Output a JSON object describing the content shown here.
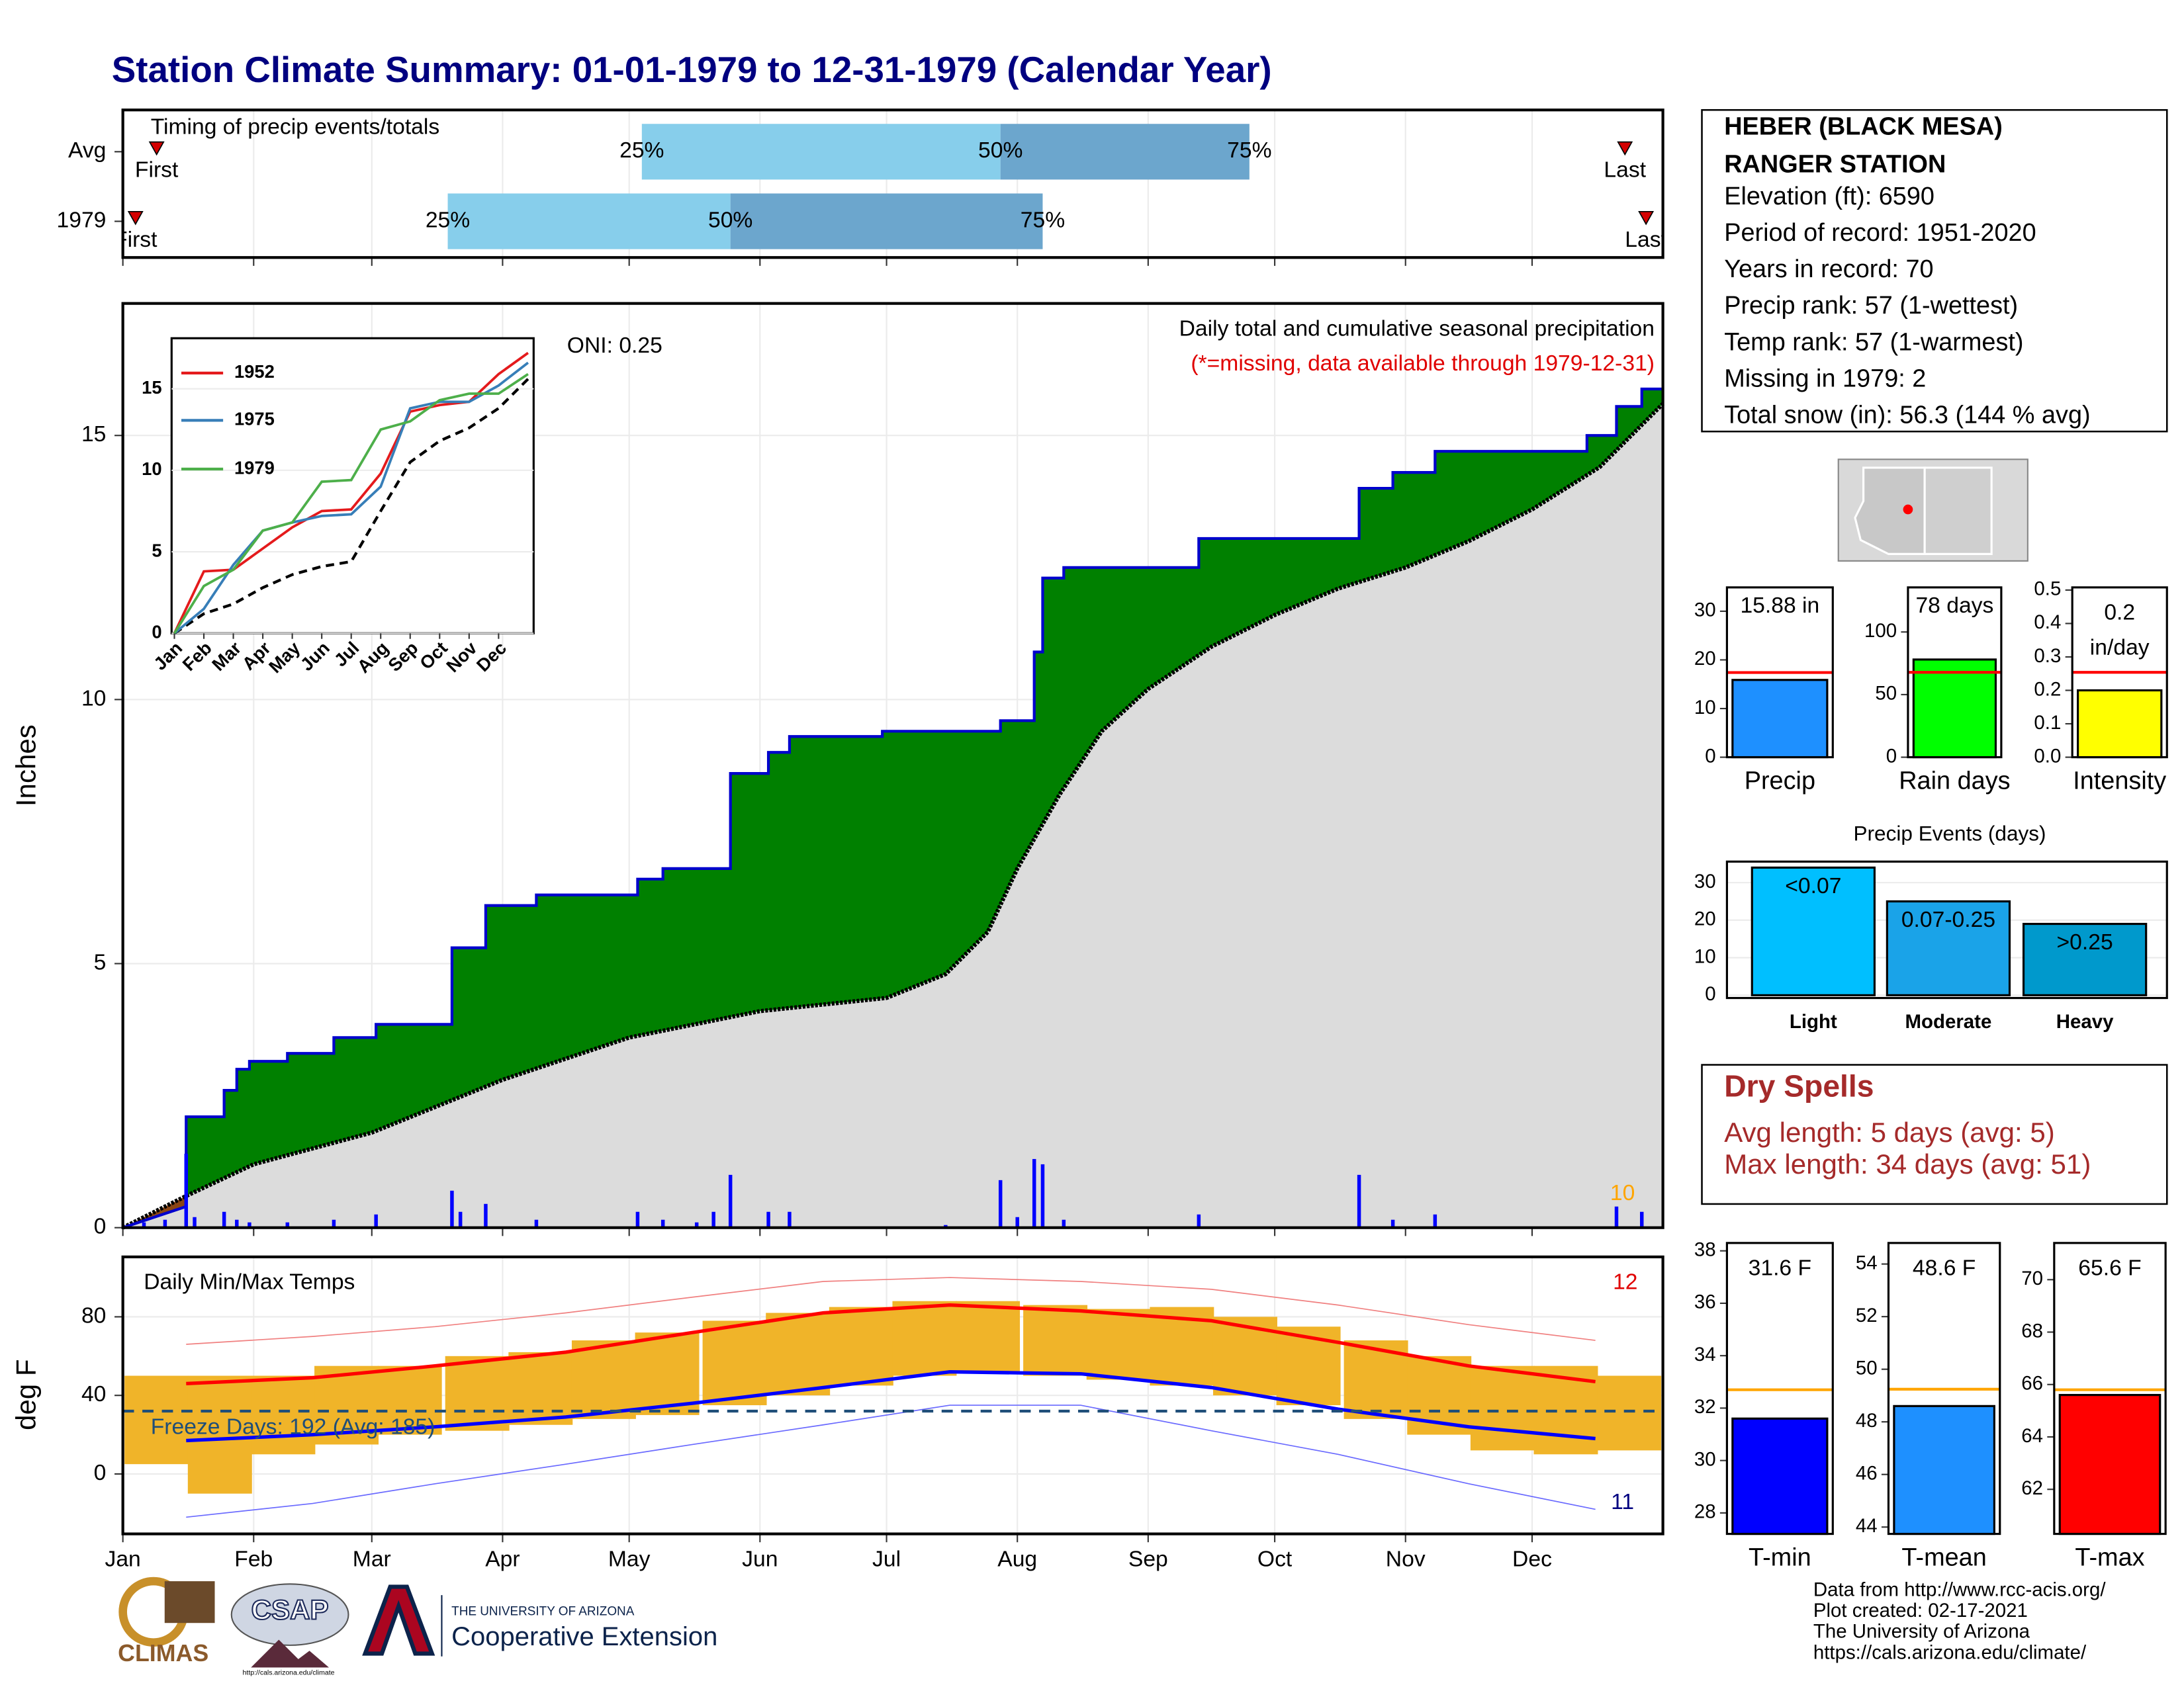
{
  "title": "Station Climate Summary: 01-01-1979 to 12-31-1979 (Calendar Year)",
  "chart_data": [
    {
      "type": "timing",
      "title": "Timing of precip events/totals",
      "xlim": [
        0,
        365
      ],
      "colors": [
        "#87ceeb",
        "#6ca6cd"
      ],
      "marker_color": "#d40000",
      "series": [
        {
          "name": "Avg",
          "values": [
            123,
            208,
            267
          ],
          "value_labels": [
            "25%",
            "50%",
            "75%"
          ],
          "first": 8,
          "last": 356,
          "first_label": "First",
          "last_label": "Last"
        },
        {
          "name": "1979",
          "values": [
            77,
            144,
            218
          ],
          "value_labels": [
            "25%",
            "50%",
            "75%"
          ],
          "first": 3,
          "last": 361,
          "first_label": "First",
          "last_label": "Last"
        }
      ]
    },
    {
      "type": "cumulative",
      "ylabel": "Inches",
      "ylim": [
        0,
        17.5
      ],
      "yticks": [
        0,
        5,
        10,
        15
      ],
      "xlim": [
        0,
        365
      ],
      "oni": "ONI: 0.25",
      "subtitle": "Daily total and cumulative seasonal precipitation",
      "note": "(*=missing, data available through 1979-12-31)",
      "count": "10",
      "colors": {
        "above": "#008000",
        "below": "#8b4513",
        "normal": "#dcdcdc"
      },
      "observed": {
        "color": "#0000cd",
        "x": [
          0,
          15,
          15,
          24,
          24,
          27,
          27,
          30,
          30,
          39,
          39,
          50,
          50,
          60,
          60,
          78,
          78,
          86,
          86,
          98,
          98,
          122,
          122,
          128,
          128,
          144,
          144,
          153,
          153,
          158,
          158,
          180,
          180,
          208,
          208,
          216,
          216,
          218,
          218,
          223,
          223,
          255,
          255,
          293,
          293,
          301,
          301,
          311,
          311,
          347,
          347,
          354,
          354,
          360,
          360,
          365
        ],
        "values": [
          0,
          0.4,
          2.1,
          2.1,
          2.6,
          2.6,
          3.0,
          3.0,
          3.15,
          3.15,
          3.3,
          3.3,
          3.6,
          3.6,
          3.85,
          3.85,
          5.3,
          5.3,
          6.1,
          6.1,
          6.3,
          6.3,
          6.6,
          6.6,
          6.8,
          6.8,
          8.6,
          8.6,
          9.0,
          9.0,
          9.3,
          9.3,
          9.4,
          9.4,
          9.6,
          9.6,
          10.9,
          10.9,
          12.3,
          12.3,
          12.5,
          12.5,
          13.05,
          13.05,
          14.0,
          14.0,
          14.3,
          14.3,
          14.7,
          14.7,
          15.0,
          15.0,
          15.55,
          15.55,
          15.88,
          15.88
        ]
      },
      "average": {
        "color": "#000000",
        "x": [
          0,
          15,
          31,
          59,
          90,
          120,
          151,
          181,
          195,
          205,
          212,
          222,
          232,
          243,
          258,
          273,
          288,
          304,
          319,
          334,
          350,
          365
        ],
        "values": [
          0,
          0.6,
          1.2,
          1.8,
          2.8,
          3.6,
          4.1,
          4.35,
          4.8,
          5.6,
          6.8,
          8.2,
          9.4,
          10.2,
          11.0,
          11.6,
          12.1,
          12.5,
          13.0,
          13.6,
          14.4,
          15.6
        ]
      },
      "daily": {
        "color": "#0000ff",
        "x": [
          5,
          10,
          15,
          17,
          24,
          27,
          30,
          39,
          50,
          60,
          78,
          80,
          86,
          98,
          122,
          128,
          136,
          140,
          144,
          153,
          158,
          195,
          208,
          212,
          216,
          218,
          223,
          255,
          293,
          301,
          311,
          354,
          360
        ],
        "values": [
          0.1,
          0.15,
          1.4,
          0.2,
          0.3,
          0.15,
          0.1,
          0.1,
          0.15,
          0.25,
          0.7,
          0.3,
          0.45,
          0.15,
          0.3,
          0.15,
          0.1,
          0.3,
          1.0,
          0.3,
          0.3,
          0.05,
          0.9,
          0.2,
          1.3,
          1.2,
          0.15,
          0.25,
          1.0,
          0.15,
          0.25,
          0.4,
          0.3
        ]
      }
    },
    {
      "type": "line",
      "xlim": [
        0,
        12
      ],
      "ylim": [
        0,
        18.1
      ],
      "yticks": [
        0,
        5,
        10,
        15
      ],
      "x": [
        0,
        1,
        2,
        3,
        4,
        5,
        6,
        7,
        8,
        9,
        10,
        11,
        12
      ],
      "xticks": [
        {
          "value": 0,
          "label": "Jan"
        },
        {
          "value": 1,
          "label": "Feb"
        },
        {
          "value": 2,
          "label": "Mar"
        },
        {
          "value": 3,
          "label": "Apr"
        },
        {
          "value": 4,
          "label": "May"
        },
        {
          "value": 5,
          "label": "Jun"
        },
        {
          "value": 6,
          "label": "Jul"
        },
        {
          "value": 7,
          "label": "Aug"
        },
        {
          "value": 8,
          "label": "Sep"
        },
        {
          "value": 9,
          "label": "Oct"
        },
        {
          "value": 10,
          "label": "Nov"
        },
        {
          "value": 11,
          "label": "Dec"
        }
      ],
      "series": [
        {
          "name": "1952",
          "color": "#e41a1c",
          "values": [
            0,
            3.8,
            3.9,
            5.2,
            6.5,
            7.5,
            7.6,
            9.8,
            13.6,
            14.0,
            14.2,
            15.9,
            17.2
          ]
        },
        {
          "name": "1975",
          "color": "#377eb8",
          "values": [
            0,
            1.5,
            4.2,
            6.3,
            6.8,
            7.2,
            7.3,
            9.0,
            13.8,
            14.2,
            14.2,
            15.2,
            16.6
          ]
        },
        {
          "name": "1979",
          "color": "#4daf4a",
          "values": [
            0,
            2.9,
            3.9,
            6.3,
            6.8,
            9.3,
            9.4,
            12.5,
            13.0,
            14.3,
            14.7,
            14.7,
            15.9
          ]
        }
      ],
      "average": {
        "color": "#000000",
        "values": [
          0,
          1.2,
          1.8,
          2.8,
          3.6,
          4.1,
          4.4,
          7.5,
          10.5,
          11.8,
          12.6,
          13.8,
          15.6
        ]
      }
    },
    {
      "type": "temps",
      "title": "Daily Min/Max Temps",
      "ylabel": "deg F",
      "ylim": [
        -30.5,
        110.5
      ],
      "yticks": [
        0,
        40,
        80
      ],
      "xlim": [
        0,
        365
      ],
      "xticks": [
        {
          "value": 0,
          "label": "Jan"
        },
        {
          "value": 31,
          "label": "Feb"
        },
        {
          "value": 59,
          "label": "Mar"
        },
        {
          "value": 90,
          "label": "Apr"
        },
        {
          "value": 120,
          "label": "May"
        },
        {
          "value": 151,
          "label": "Jun"
        },
        {
          "value": 181,
          "label": "Jul"
        },
        {
          "value": 212,
          "label": "Aug"
        },
        {
          "value": 243,
          "label": "Sep"
        },
        {
          "value": 273,
          "label": "Oct"
        },
        {
          "value": 304,
          "label": "Nov"
        },
        {
          "value": 334,
          "label": "Dec"
        }
      ],
      "bars": {
        "color": "#f0b429",
        "x": [
          8,
          23,
          38,
          53,
          68,
          84,
          99,
          114,
          129,
          145,
          160,
          175,
          190,
          205,
          221,
          236,
          251,
          266,
          281,
          297,
          312,
          327,
          342,
          357
        ],
        "min": [
          5,
          -10,
          10,
          15,
          20,
          22,
          25,
          28,
          30,
          35,
          40,
          45,
          50,
          52,
          50,
          48,
          45,
          40,
          35,
          28,
          20,
          12,
          10,
          12
        ],
        "max": [
          50,
          50,
          50,
          55,
          55,
          60,
          62,
          68,
          72,
          78,
          82,
          85,
          88,
          88,
          86,
          84,
          85,
          80,
          75,
          68,
          60,
          55,
          55,
          50
        ]
      },
      "monthly_x": [
        15,
        45,
        74,
        105,
        135,
        166,
        196,
        227,
        258,
        288,
        319,
        349
      ],
      "normal_max": {
        "color": "#ff0000",
        "values": [
          46,
          49,
          55,
          62,
          72,
          82,
          86,
          83,
          78,
          67,
          55,
          47
        ]
      },
      "normal_min": {
        "color": "#0000ff",
        "values": [
          17,
          20,
          24,
          29,
          36,
          44,
          52,
          51,
          44,
          33,
          24,
          18
        ]
      },
      "record_max": {
        "color": "#f08080",
        "values": [
          66,
          70,
          75,
          82,
          90,
          98,
          100,
          98,
          94,
          86,
          76,
          68
        ]
      },
      "record_min": {
        "color": "#6a6aff",
        "values": [
          -22,
          -15,
          -5,
          5,
          15,
          25,
          35,
          35,
          22,
          10,
          -5,
          -18
        ]
      },
      "freeze_line": 32,
      "freeze_color": "#1f4e79",
      "freeze_label": "Freeze Days: 192 (Avg: 185)",
      "max_count": "12",
      "min_count": "11"
    },
    {
      "type": "summary",
      "avg_color": "#ff0000",
      "panels": [
        {
          "label": "Precip",
          "value": 15.88,
          "value_label": "15.88 in",
          "avg": 17.4,
          "ylim": [
            0,
            34.9
          ],
          "yticks": [
            0,
            10,
            20,
            30
          ],
          "color": "#1e90ff"
        },
        {
          "label": "Rain days",
          "value": 78,
          "value_label": "78 days",
          "avg": 67.8,
          "ylim": [
            0,
            135.6
          ],
          "yticks": [
            0,
            50,
            100
          ],
          "color": "#00ff00"
        },
        {
          "label": "Intensity",
          "value": 0.2,
          "value_label": "0.2",
          "unit": "in/day",
          "avg": 0.254,
          "ylim": [
            0,
            0.508
          ],
          "yticks": [
            {
              "value": 0,
              "label": "0.0"
            },
            0.1,
            0.2,
            0.3,
            0.4,
            0.5
          ],
          "color": "#ffff00"
        }
      ]
    },
    {
      "type": "bar",
      "title": "Precip Events (days)",
      "categories": [
        "Light",
        "Moderate",
        "Heavy"
      ],
      "values": [
        34,
        25,
        19
      ],
      "thresholds": [
        "<0.07",
        "0.07-0.25",
        ">0.25"
      ],
      "colors": [
        "#00bfff",
        "#1aa3e8",
        "#0099cc"
      ],
      "ylim": [
        0,
        35.6
      ],
      "yticks": [
        0,
        10,
        20,
        30
      ]
    },
    {
      "type": "summary",
      "avg_color": "#ffa500",
      "panels": [
        {
          "label": "T-min",
          "value": 31.6,
          "value_label": "31.6 F",
          "avg": 32.7,
          "ylim": [
            27.2,
            38.3
          ],
          "yticks": [
            28,
            30,
            32,
            34,
            36,
            38
          ],
          "color": "#0000ff"
        },
        {
          "label": "T-mean",
          "value": 48.6,
          "value_label": "48.6 F",
          "avg": 49.24,
          "ylim": [
            43.74,
            54.8
          ],
          "yticks": [
            44,
            46,
            48,
            50,
            52,
            54
          ],
          "color": "#1e90ff"
        },
        {
          "label": "T-max",
          "value": 65.6,
          "value_label": "65.6 F",
          "avg": 65.8,
          "ylim": [
            60.3,
            71.4
          ],
          "yticks": [
            62,
            64,
            66,
            68,
            70
          ],
          "color": "#ff0000"
        }
      ]
    }
  ],
  "station": {
    "name": [
      "HEBER (BLACK MESA)",
      "RANGER STATION"
    ],
    "lines": [
      "Elevation (ft): 6590",
      "Period of record: 1951-2020",
      "Years in record: 70",
      "Precip rank: 57 (1-wettest)",
      "Temp rank: 57 (1-warmest)",
      "Missing in 1979: 2",
      "Total snow (in): 56.3 (144 % avg)"
    ]
  },
  "dry_spells": {
    "title": "Dry Spells",
    "lines": [
      "Avg length: 5 days (avg: 5)",
      "Max length: 34 days (avg: 51)"
    ]
  },
  "footer": [
    "Data from http://www.rcc-acis.org/",
    "Plot created: 02-17-2021",
    "The University of Arizona",
    "https://cals.arizona.edu/climate/"
  ],
  "logos": {
    "climas": "CLIMAS",
    "csap": "CSAP",
    "csap_url": "http://cals.arizona.edu/climate",
    "ua": "THE UNIVERSITY OF ARIZONA",
    "coop": "Cooperative Extension"
  }
}
